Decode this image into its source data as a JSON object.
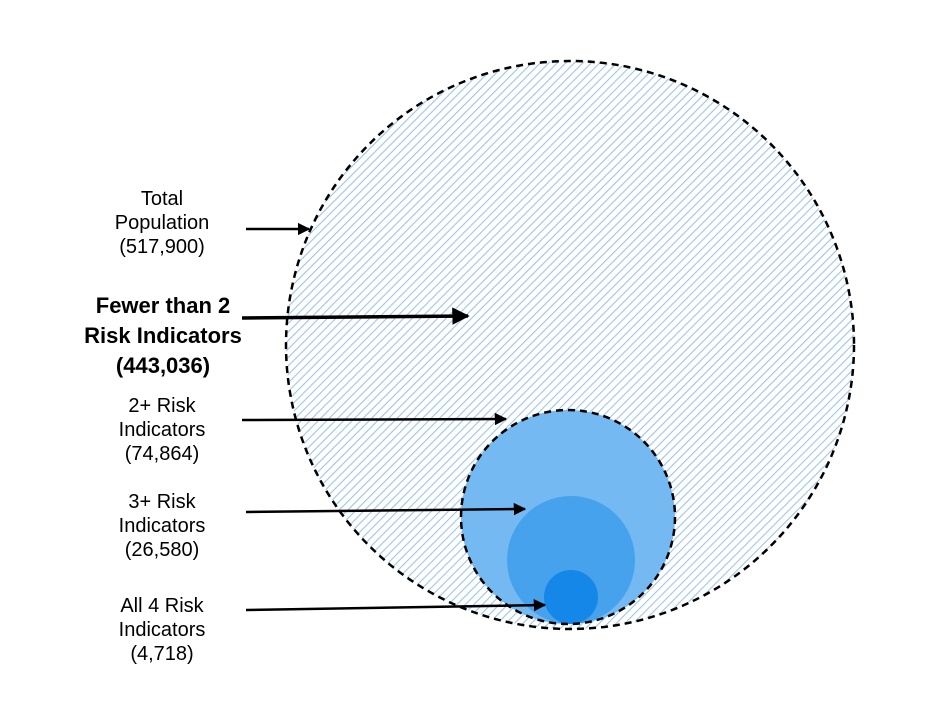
{
  "colors": {
    "hatch": "#9ec5e8",
    "circle_2plus": "#75b9f2",
    "circle_3plus": "#46a2ec",
    "circle_all4": "#1587e8",
    "outline": "#000000"
  },
  "groups": [
    {
      "id": "total",
      "lines": [
        "Total",
        "Population",
        "(517,900)"
      ],
      "count": 517900,
      "bold": false
    },
    {
      "id": "fewer",
      "lines": [
        "Fewer than 2",
        "Risk Indicators",
        "(443,036)"
      ],
      "count": 443036,
      "bold": true
    },
    {
      "id": "2plus",
      "lines": [
        "2+ Risk",
        "Indicators",
        "(74,864)"
      ],
      "count": 74864,
      "bold": false
    },
    {
      "id": "3plus",
      "lines": [
        "3+ Risk",
        "Indicators",
        "(26,580)"
      ],
      "count": 26580,
      "bold": false
    },
    {
      "id": "all4",
      "lines": [
        "All 4 Risk",
        "Indicators",
        "(4,718)"
      ],
      "count": 4718,
      "bold": false
    }
  ]
}
